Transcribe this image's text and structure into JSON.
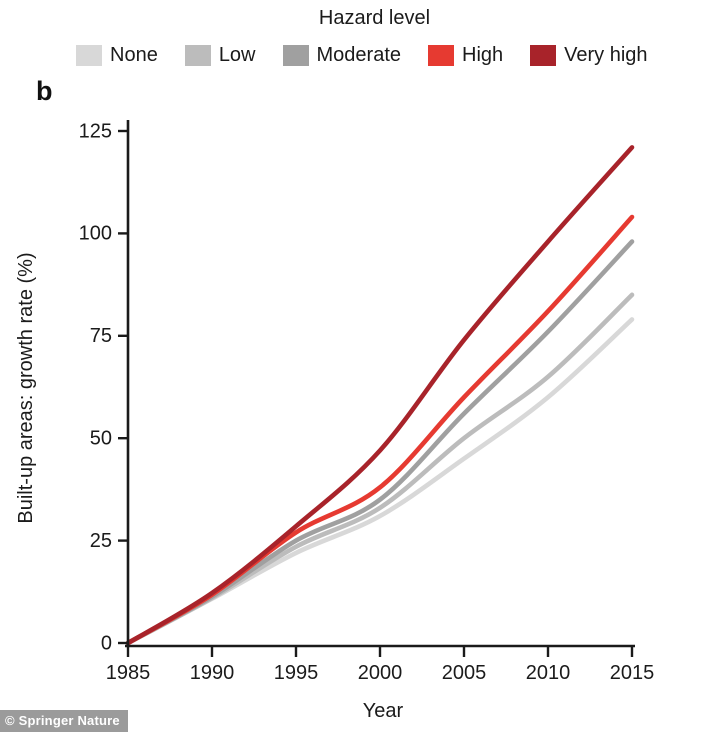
{
  "legend": {
    "title": "Hazard level",
    "items": [
      {
        "label": "None",
        "color": "#d8d8d8"
      },
      {
        "label": "Low",
        "color": "#bcbcbc"
      },
      {
        "label": "Moderate",
        "color": "#a0a0a0"
      },
      {
        "label": "High",
        "color": "#e63a31"
      },
      {
        "label": "Very high",
        "color": "#a8232a"
      }
    ]
  },
  "panel_label": "b",
  "chart_data": {
    "type": "line",
    "title": "",
    "xlabel": "Year",
    "ylabel": "Built-up areas: growth rate (%)",
    "x": [
      1985,
      1990,
      1995,
      2000,
      2005,
      2010,
      2015
    ],
    "series": [
      {
        "name": "None",
        "color": "#d8d8d8",
        "values": [
          0,
          10.8,
          22.0,
          31,
          45,
          60,
          79
        ]
      },
      {
        "name": "Low",
        "color": "#bcbcbc",
        "values": [
          0,
          11.0,
          23.5,
          33,
          50,
          65,
          85
        ]
      },
      {
        "name": "Moderate",
        "color": "#a0a0a0",
        "values": [
          0,
          11.3,
          25.0,
          35,
          56,
          76,
          98
        ]
      },
      {
        "name": "High",
        "color": "#e63a31",
        "values": [
          0,
          11.8,
          27.0,
          38,
          60,
          81,
          104
        ]
      },
      {
        "name": "Very high",
        "color": "#a8232a",
        "values": [
          0,
          12.2,
          28.5,
          47,
          74,
          98,
          121
        ]
      }
    ],
    "xticks": [
      1985,
      1990,
      1995,
      2000,
      2005,
      2010,
      2015
    ],
    "yticks": [
      0,
      25,
      50,
      75,
      100,
      125
    ],
    "xlim": [
      1985,
      2015
    ],
    "ylim": [
      0,
      125
    ],
    "grid": false,
    "legend_position": "top"
  },
  "watermark": {
    "text": "© Springer Nature"
  }
}
